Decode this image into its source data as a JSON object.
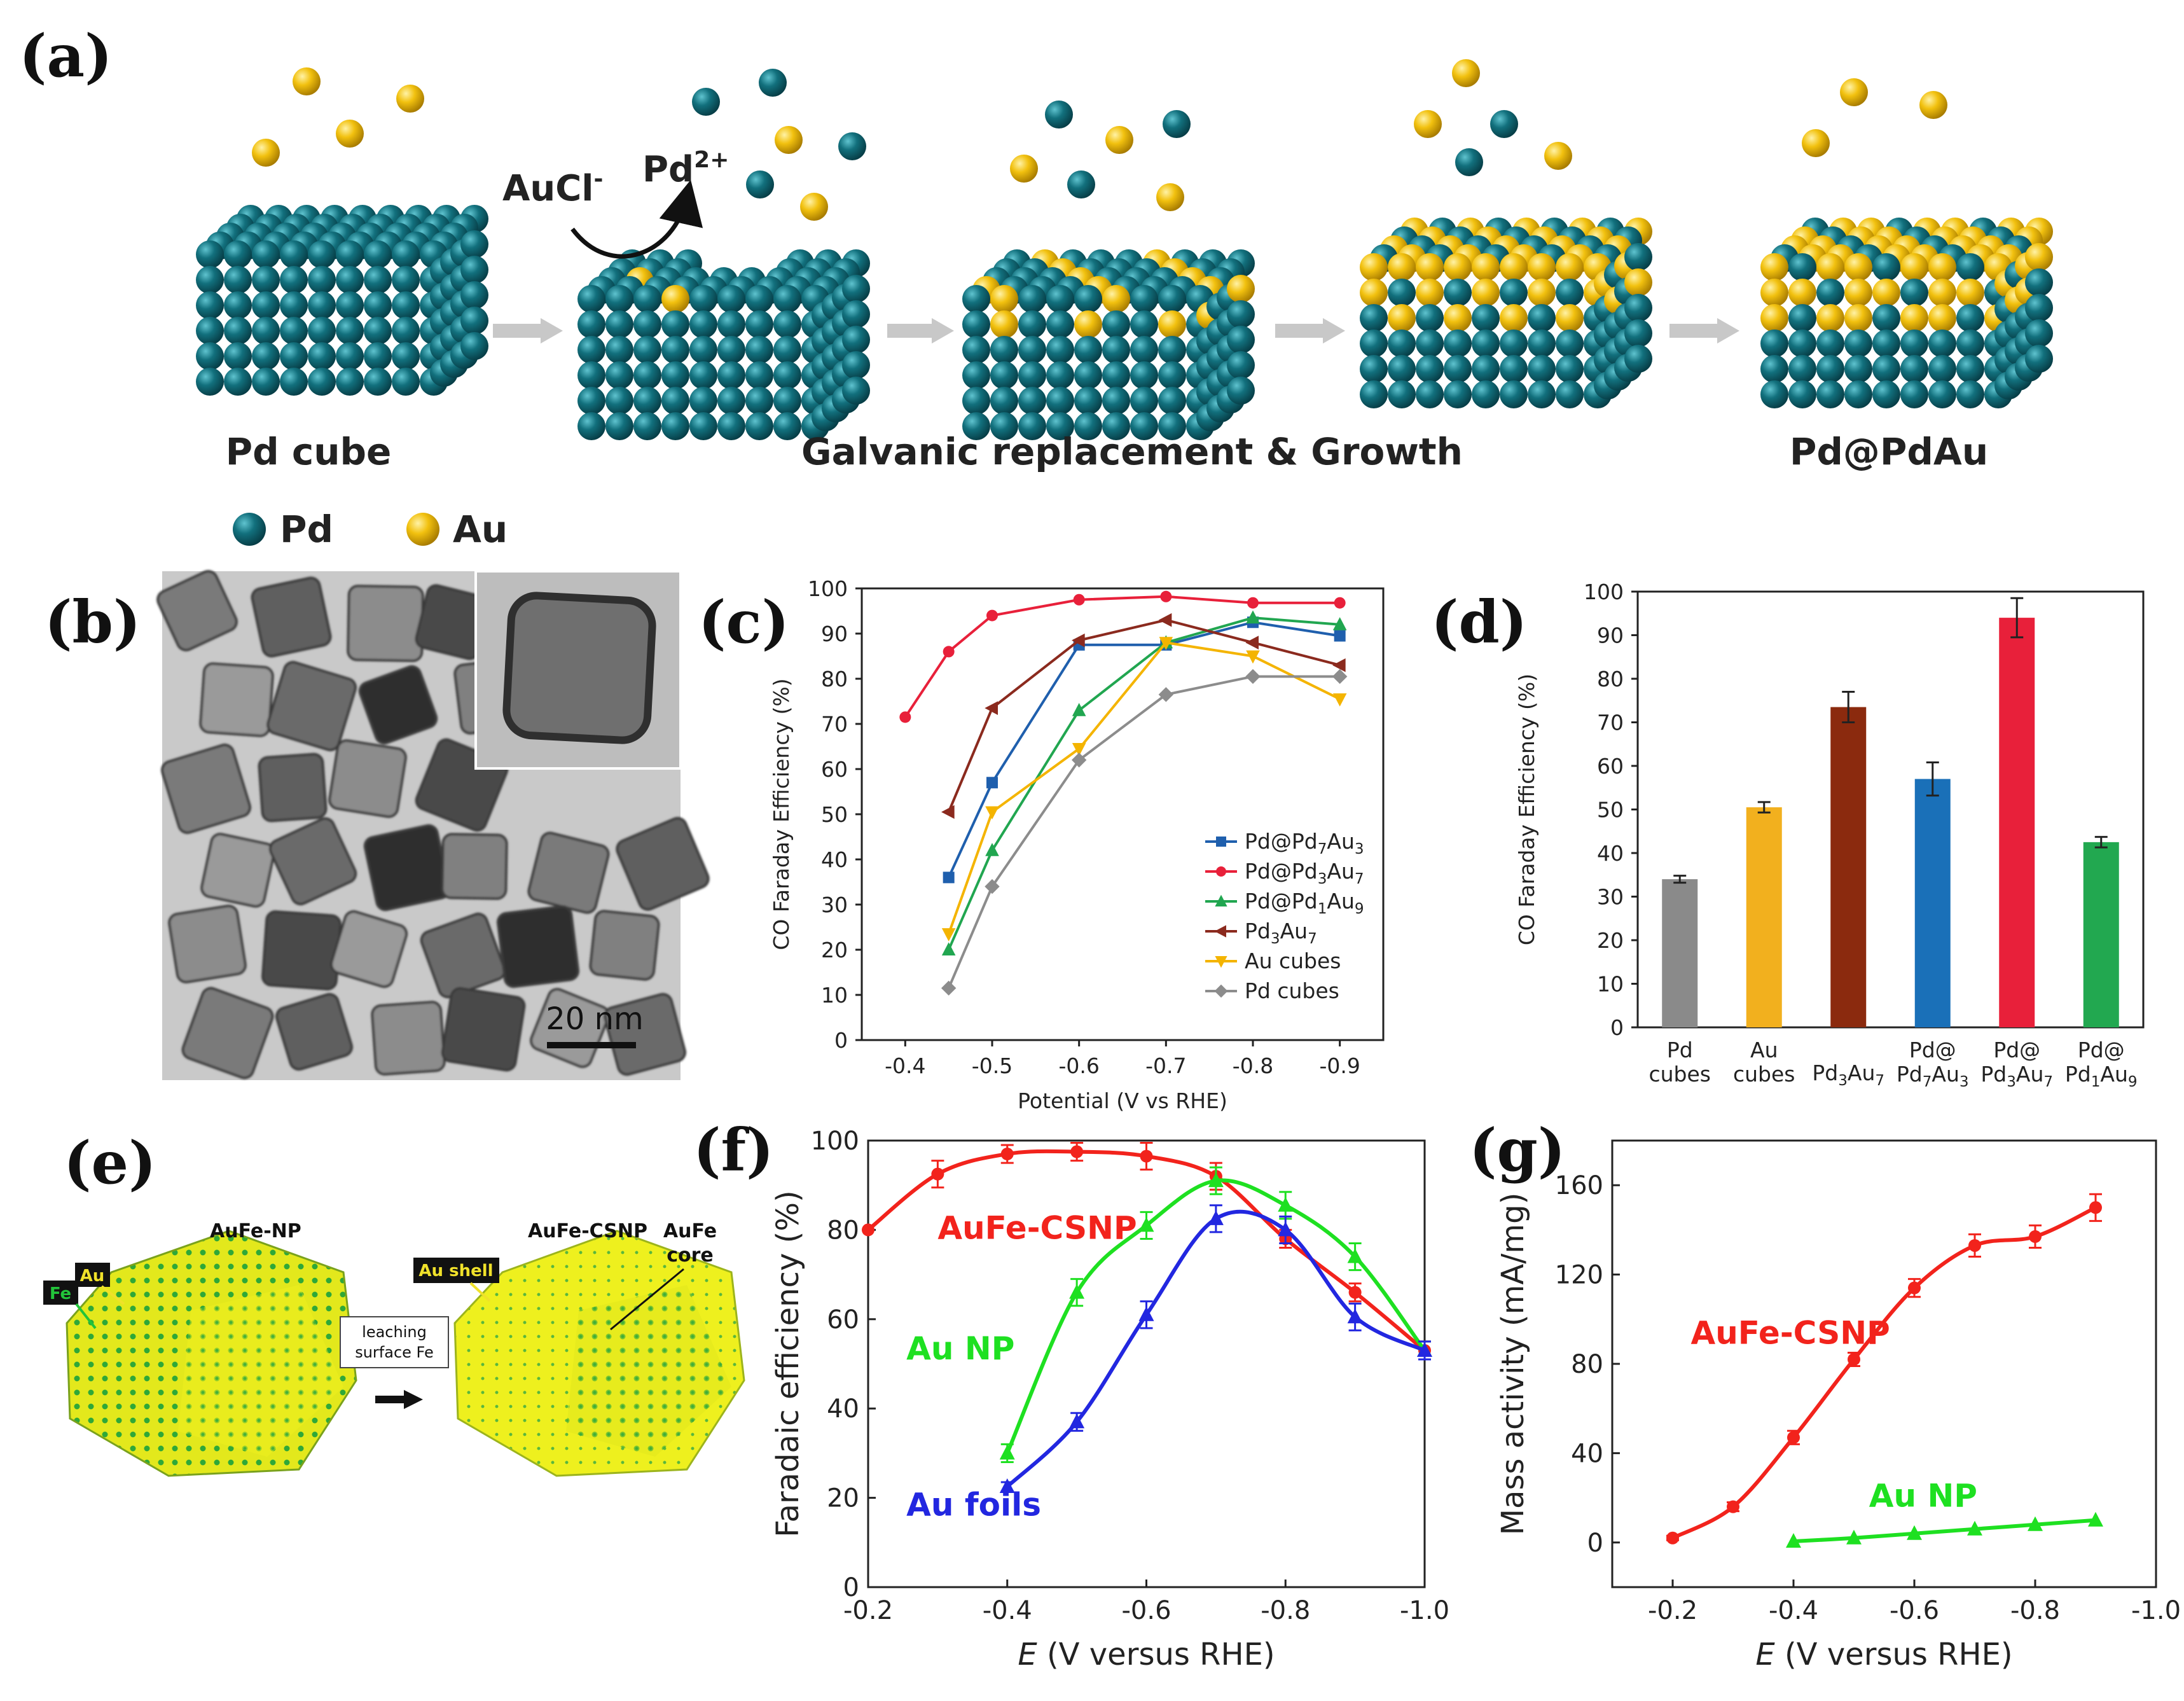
{
  "panel_labels": {
    "a": "(a)",
    "b": "(b)",
    "c": "(c)",
    "d": "(d)",
    "e": "(e)",
    "f": "(f)",
    "g": "(g)"
  },
  "schematic_a": {
    "label_pd_cube": "Pd cube",
    "label_process": "Galvanic replacement & Growth",
    "label_product": "Pd@PdAu",
    "reactant": "AuCl",
    "reactant_sup": "-",
    "product_ion": "Pd",
    "product_ion_sup": "2+",
    "legend_pd": "Pd",
    "legend_au": "Au",
    "colors": {
      "pd": "#136b78",
      "au": "#f3c514"
    }
  },
  "tem_b": {
    "scalebar": "20 nm"
  },
  "schematic_e": {
    "label_np": "AuFe-NP",
    "label_csnp": "AuFe-CSNP",
    "tag_au": "Au",
    "tag_fe": "Fe",
    "tag_shell": "Au shell",
    "core_label_1": "AuFe",
    "core_label_2": "core",
    "process_line1": "leaching",
    "process_line2": "surface Fe"
  },
  "chart_data": [
    {
      "id": "c",
      "type": "line",
      "title": "",
      "xlabel": "Potential (V vs RHE)",
      "ylabel": "CO Faraday Efficiency (%)",
      "xlim": [
        -0.35,
        -0.95
      ],
      "ylim": [
        0,
        100
      ],
      "xticks": [
        -0.4,
        -0.5,
        -0.6,
        -0.7,
        -0.8,
        -0.9
      ],
      "xtick_labels": [
        "-0.4",
        "-0.5",
        "-0.6",
        "-0.7",
        "-0.8",
        "-0.9"
      ],
      "yticks": [
        0,
        10,
        20,
        30,
        40,
        50,
        60,
        70,
        80,
        90,
        100
      ],
      "legend_position": "bottom-right",
      "series": [
        {
          "name": "Pd@Pd7Au3",
          "legend_main": "Pd@Pd",
          "legend_subs": [
            "7",
            "Au",
            "3"
          ],
          "color": "#1f5fad",
          "marker": "square",
          "x": [
            -0.45,
            -0.5,
            -0.6,
            -0.7,
            -0.8,
            -0.9
          ],
          "y": [
            36,
            57,
            87.5,
            87.5,
            92.5,
            89.5
          ]
        },
        {
          "name": "Pd@Pd3Au7",
          "legend_main": "Pd@Pd",
          "legend_subs": [
            "3",
            "Au",
            "7"
          ],
          "color": "#e8203a",
          "marker": "circle",
          "x": [
            -0.4,
            -0.45,
            -0.5,
            -0.6,
            -0.7,
            -0.8,
            -0.9
          ],
          "y": [
            71.5,
            86,
            94,
            97.5,
            98.2,
            96.8,
            96.8
          ]
        },
        {
          "name": "Pd@Pd1Au9",
          "legend_main": "Pd@Pd",
          "legend_subs": [
            "1",
            "Au",
            "9"
          ],
          "color": "#21a650",
          "marker": "triangle-up",
          "x": [
            -0.45,
            -0.5,
            -0.6,
            -0.7,
            -0.8,
            -0.9
          ],
          "y": [
            20,
            42,
            73,
            88,
            93.5,
            92
          ]
        },
        {
          "name": "Pd3Au7",
          "legend_main": "Pd",
          "legend_subs": [
            "3",
            "Au",
            "7"
          ],
          "color": "#8b2a1e",
          "marker": "triangle-left",
          "x": [
            -0.45,
            -0.5,
            -0.6,
            -0.7,
            -0.8,
            -0.9
          ],
          "y": [
            50.5,
            73.5,
            88.5,
            93,
            88,
            83
          ]
        },
        {
          "name": "Au cubes",
          "legend_main": "Au cubes",
          "legend_subs": [],
          "color": "#f4b400",
          "marker": "triangle-down",
          "x": [
            -0.45,
            -0.5,
            -0.6,
            -0.7,
            -0.8,
            -0.9
          ],
          "y": [
            23.5,
            50.5,
            64.5,
            88,
            85,
            75.5
          ]
        },
        {
          "name": "Pd cubes",
          "legend_main": "Pd cubes",
          "legend_subs": [],
          "color": "#8c8c8c",
          "marker": "diamond",
          "x": [
            -0.45,
            -0.5,
            -0.6,
            -0.7,
            -0.8,
            -0.9
          ],
          "y": [
            11.5,
            34,
            62,
            76.5,
            80.5,
            80.5
          ]
        }
      ]
    },
    {
      "id": "d",
      "type": "bar",
      "title": "",
      "xlabel": "",
      "ylabel": "CO Faraday Efficiency (%)",
      "ylim": [
        0,
        100
      ],
      "yticks": [
        0,
        10,
        20,
        30,
        40,
        50,
        60,
        70,
        80,
        90,
        100
      ],
      "categories": [
        "Pd cubes",
        "Au cubes",
        "Pd3Au7",
        "Pd@Pd7Au3",
        "Pd@Pd3Au7",
        "Pd@Pd1Au9"
      ],
      "category_line1": [
        "Pd",
        "Au",
        "Pd",
        "Pd@",
        "Pd@",
        "Pd@"
      ],
      "category_line2": [
        "cubes",
        "cubes",
        "",
        "Pd",
        "Pd",
        "Pd"
      ],
      "category_subs": [
        [],
        [],
        [
          "3",
          "Au",
          "7"
        ],
        [
          "7",
          "Au",
          "3"
        ],
        [
          "3",
          "Au",
          "7"
        ],
        [
          "1",
          "Au",
          "9"
        ]
      ],
      "values": [
        34,
        50.5,
        73.5,
        57,
        94,
        42.5
      ],
      "errors": [
        0.8,
        1.2,
        3.5,
        3.8,
        4.5,
        1.2
      ],
      "colors": [
        "#8a8a8a",
        "#f2b01e",
        "#8b2a0e",
        "#1a70b8",
        "#e8203a",
        "#22a850"
      ]
    },
    {
      "id": "f",
      "type": "line",
      "title": "",
      "xlabel_italic": "E",
      "xlabel_rest": " (V versus RHE)",
      "ylabel": "Faradaic efficiency (%)",
      "xlim": [
        -0.2,
        -1.0
      ],
      "ylim": [
        0,
        100
      ],
      "xticks": [
        -0.2,
        -0.4,
        -0.6,
        -0.8,
        -1.0
      ],
      "xtick_labels": [
        "-0.2",
        "-0.4",
        "-0.6",
        "-0.8",
        "-1.0"
      ],
      "yticks": [
        0,
        20,
        40,
        60,
        80,
        100
      ],
      "series": [
        {
          "name": "AuFe-CSNP",
          "color": "#f2231c",
          "marker": "circle",
          "x": [
            -0.2,
            -0.3,
            -0.4,
            -0.5,
            -0.6,
            -0.7,
            -0.8,
            -0.9,
            -1.0
          ],
          "y": [
            80,
            92.5,
            97,
            97.5,
            96.5,
            92,
            78,
            66,
            53
          ],
          "err": [
            0,
            3,
            2,
            2,
            3,
            3,
            2,
            2,
            2
          ],
          "label_pos": [
            -0.3,
            78
          ]
        },
        {
          "name": "Au NP",
          "color": "#1ee021",
          "marker": "triangle",
          "x": [
            -0.4,
            -0.5,
            -0.6,
            -0.7,
            -0.8,
            -0.9,
            -1.0
          ],
          "y": [
            30,
            66,
            81,
            91,
            85.5,
            74,
            53
          ],
          "err": [
            2,
            3,
            3,
            3,
            3,
            3,
            2
          ],
          "label_pos": [
            -0.255,
            51
          ]
        },
        {
          "name": "Au foils",
          "color": "#2227e0",
          "marker": "triangle",
          "x": [
            -0.4,
            -0.5,
            -0.6,
            -0.7,
            -0.8,
            -0.9,
            -1.0
          ],
          "y": [
            22.5,
            37,
            61,
            82.5,
            80,
            60.5,
            53
          ],
          "err": [
            1,
            2,
            3,
            3,
            3,
            3,
            2
          ],
          "label_pos": [
            -0.255,
            16
          ]
        }
      ]
    },
    {
      "id": "g",
      "type": "line",
      "title": "",
      "xlabel_italic": "E",
      "xlabel_rest": " (V versus RHE)",
      "ylabel": "Mass activity (mA/mg)",
      "xlim": [
        -0.1,
        -1.0
      ],
      "ylim": [
        -20,
        180
      ],
      "xticks": [
        -0.2,
        -0.4,
        -0.6,
        -0.8,
        -1.0
      ],
      "xtick_labels": [
        "-0.2",
        "-0.4",
        "-0.6",
        "-0.8",
        "-1.0"
      ],
      "yticks": [
        0,
        40,
        80,
        120,
        160
      ],
      "series": [
        {
          "name": "AuFe-CSNP",
          "color": "#f2231c",
          "marker": "circle",
          "x": [
            -0.2,
            -0.3,
            -0.4,
            -0.5,
            -0.6,
            -0.7,
            -0.8,
            -0.9
          ],
          "y": [
            2,
            16,
            47,
            82,
            114,
            133,
            137,
            150
          ],
          "err": [
            1,
            2,
            3,
            3,
            4,
            5,
            5,
            6
          ],
          "label_pos": [
            -0.23,
            89
          ]
        },
        {
          "name": "Au NP",
          "color": "#1ee021",
          "marker": "triangle",
          "x": [
            -0.4,
            -0.5,
            -0.6,
            -0.7,
            -0.8,
            -0.9
          ],
          "y": [
            0.5,
            2,
            4,
            6,
            8,
            10
          ],
          "err": [
            0,
            0,
            0,
            0,
            0,
            0
          ],
          "label_pos": [
            -0.525,
            16
          ]
        }
      ]
    }
  ]
}
